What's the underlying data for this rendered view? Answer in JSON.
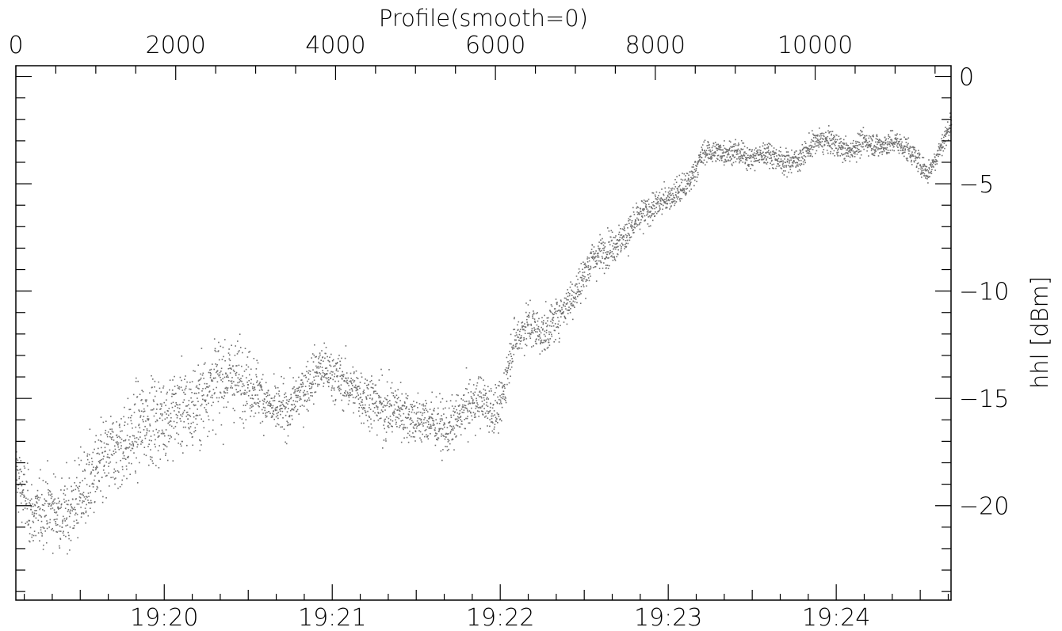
{
  "chart_data": {
    "type": "scatter",
    "title": "Profile(smooth=0)",
    "ylabel": "hhl [dBm]",
    "xlabel": "",
    "x_top_axis": {
      "label": "Profile(smooth=0)",
      "range": [
        0,
        11700
      ],
      "ticks": [
        0,
        2000,
        4000,
        6000,
        8000,
        10000
      ]
    },
    "x_bottom_axis": {
      "range": [
        "19:19:07",
        "19:24:41"
      ],
      "ticks": [
        "19:20",
        "19:21",
        "19:22",
        "19:23",
        "19:24"
      ]
    },
    "y_axis": {
      "range": [
        -24.4,
        0.5
      ],
      "ticks": [
        0,
        -5,
        -10,
        -15,
        -20
      ],
      "tick_labels": [
        "0",
        "−5",
        "−10",
        "−15",
        "−20"
      ],
      "position": "right"
    },
    "grid": false,
    "marker_color": "#6e6e6e",
    "series": [
      {
        "x": [
          0,
          200,
          400,
          600,
          800,
          1000,
          1200,
          1400,
          1600,
          1800,
          2000,
          2200,
          2400,
          2600,
          2800,
          3000,
          3200,
          3400,
          3600,
          3800,
          4000,
          4200,
          4400,
          4600,
          4800,
          5000,
          5200,
          5400,
          5600,
          5800,
          5950,
          6050,
          6200,
          6400,
          6600,
          6800,
          7000,
          7200,
          7400,
          7600,
          7800,
          8000,
          8200,
          8400,
          8600,
          8800,
          9000,
          9200,
          9400,
          9600,
          9800,
          10000,
          10200,
          10400,
          10600,
          10800,
          11000,
          11200,
          11400,
          11600,
          11700
        ],
        "y": [
          -18.5,
          -20.5,
          -20.0,
          -20.5,
          -19.5,
          -18.5,
          -17.5,
          -17.0,
          -16.0,
          -16.0,
          -15.5,
          -15.5,
          -14.5,
          -14.0,
          -14.0,
          -14.5,
          -15.5,
          -15.5,
          -14.5,
          -13.5,
          -14.0,
          -14.5,
          -15.0,
          -15.5,
          -15.5,
          -16.0,
          -16.0,
          -16.5,
          -15.5,
          -15.0,
          -15.5,
          -15.5,
          -12.5,
          -11.5,
          -12.0,
          -11.0,
          -10.0,
          -8.5,
          -8.0,
          -7.5,
          -6.5,
          -6.0,
          -5.5,
          -5.0,
          -3.5,
          -3.5,
          -3.5,
          -3.8,
          -3.5,
          -4.0,
          -3.8,
          -3.0,
          -3.0,
          -3.5,
          -3.0,
          -3.2,
          -3.0,
          -3.5,
          -4.5,
          -3.0,
          -2.0
        ],
        "spread": [
          2.0,
          2.0,
          2.0,
          2.2,
          2.5,
          2.5,
          2.5,
          2.5,
          2.5,
          2.5,
          2.5,
          2.5,
          2.5,
          2.5,
          2.2,
          1.8,
          1.5,
          1.5,
          1.5,
          1.5,
          1.5,
          1.5,
          1.8,
          1.8,
          1.8,
          1.5,
          1.5,
          1.5,
          1.5,
          1.5,
          1.5,
          1.3,
          1.3,
          1.3,
          1.3,
          1.2,
          1.2,
          1.2,
          1.0,
          1.0,
          1.0,
          0.8,
          0.8,
          0.8,
          0.7,
          0.7,
          0.7,
          0.7,
          0.7,
          0.7,
          0.7,
          0.7,
          0.7,
          0.7,
          0.7,
          0.7,
          0.7,
          0.7,
          0.7,
          0.7,
          0.7
        ]
      }
    ]
  }
}
